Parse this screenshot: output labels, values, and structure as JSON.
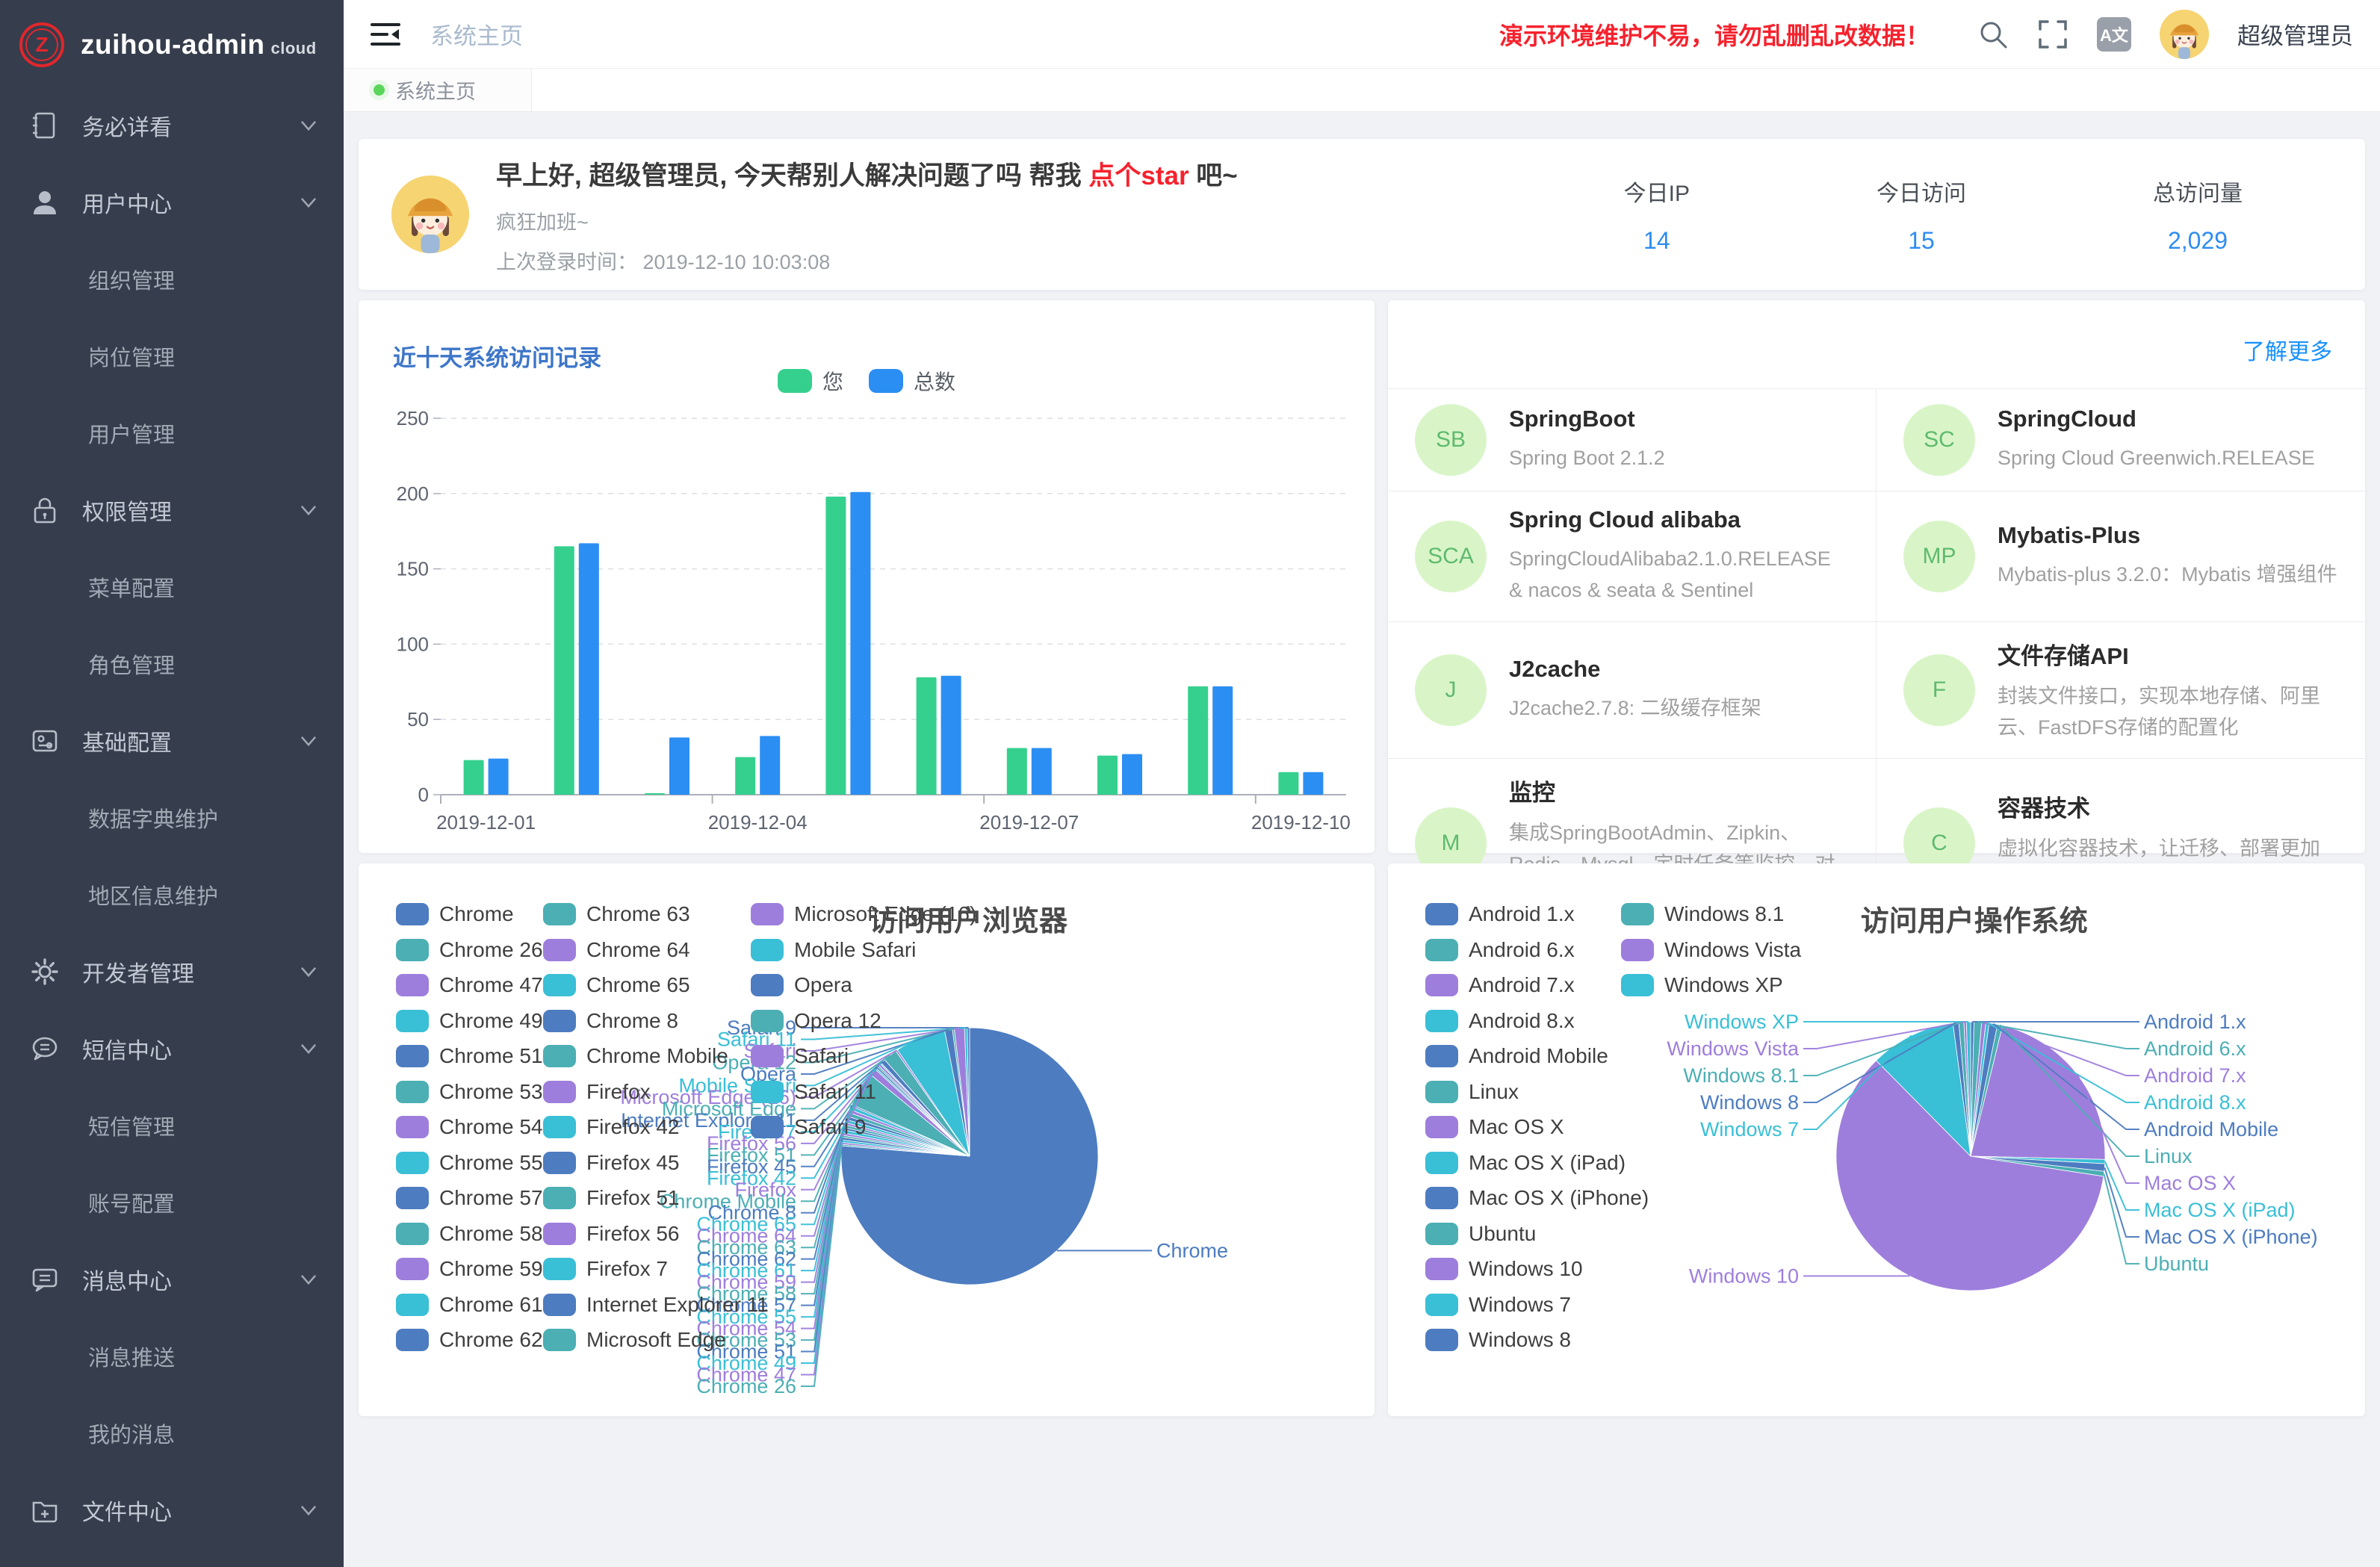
{
  "app": {
    "brand": "zuihou-admin",
    "brand_suffix": "cloud",
    "logo_letter": "Z"
  },
  "sidebar": {
    "items": [
      {
        "label": "务必详看",
        "icon": "notebook-icon",
        "children": []
      },
      {
        "label": "用户中心",
        "icon": "user-icon",
        "children": [
          "组织管理",
          "岗位管理",
          "用户管理"
        ]
      },
      {
        "label": "权限管理",
        "icon": "lock-icon",
        "children": [
          "菜单配置",
          "角色管理"
        ]
      },
      {
        "label": "基础配置",
        "icon": "sliders-icon",
        "children": [
          "数据字典维护",
          "地区信息维护"
        ]
      },
      {
        "label": "开发者管理",
        "icon": "gear-icon",
        "children": []
      },
      {
        "label": "短信中心",
        "icon": "chat-icon",
        "children": [
          "短信管理",
          "账号配置"
        ]
      },
      {
        "label": "消息中心",
        "icon": "message-icon",
        "children": [
          "消息推送",
          "我的消息"
        ]
      },
      {
        "label": "文件中心",
        "icon": "folder-plus-icon",
        "children": []
      }
    ]
  },
  "topbar": {
    "breadcrumb": "系统主页",
    "warning": "演示环境维护不易，请勿乱删乱改数据！",
    "translate_label": "A文",
    "user_name": "超级管理员"
  },
  "tabs": {
    "active": "系统主页"
  },
  "greeting": {
    "title_prefix": "早上好, 超级管理员, 今天帮别人解决问题了吗 帮我 ",
    "title_link": "点个star",
    "title_suffix": " 吧~",
    "motto": "疯狂加班~",
    "last_login_label": "上次登录时间：",
    "last_login_time": "2019-12-10 10:03:08"
  },
  "stats": [
    {
      "label": "今日IP",
      "value": "14"
    },
    {
      "label": "今日访问",
      "value": "15"
    },
    {
      "label": "总访问量",
      "value": "2,029"
    }
  ],
  "projects": {
    "more_link": "了解更多",
    "items": [
      {
        "initials": "SB",
        "title": "SpringBoot",
        "desc": "Spring Boot 2.1.2"
      },
      {
        "initials": "SC",
        "title": "SpringCloud",
        "desc": "Spring Cloud Greenwich.RELEASE"
      },
      {
        "initials": "SCA",
        "title": "Spring Cloud alibaba",
        "desc": "SpringCloudAlibaba2.1.0.RELEASE & nacos & seata & Sentinel"
      },
      {
        "initials": "MP",
        "title": "Mybatis-Plus",
        "desc": "Mybatis-plus 3.2.0：Mybatis 增强组件"
      },
      {
        "initials": "J",
        "title": "J2cache",
        "desc": "J2cache2.7.8: 二级缓存框架"
      },
      {
        "initials": "F",
        "title": "文件存储API",
        "desc": "封装文件接口，实现本地存储、阿里云、FastDFS存储的配置化"
      },
      {
        "initials": "M",
        "title": "监控",
        "desc": "集成SpringBootAdmin、Zipkin、Redis、Mysql、定时任务等监控，对系统进行全方位监控护航"
      },
      {
        "initials": "C",
        "title": "容器技术",
        "desc": "虚拟化容器技术，让迁移、部署更加方便快捷"
      }
    ]
  },
  "chart_data": [
    {
      "id": "visits_bar",
      "type": "bar",
      "title": "近十天系统访问记录",
      "categories": [
        "2019-12-01",
        "2019-12-02",
        "2019-12-03",
        "2019-12-04",
        "2019-12-05",
        "2019-12-06",
        "2019-12-07",
        "2019-12-08",
        "2019-12-09",
        "2019-12-10"
      ],
      "series": [
        {
          "name": "您",
          "color": "#35d08e",
          "values": [
            23,
            165,
            1,
            25,
            198,
            78,
            31,
            26,
            72,
            15
          ]
        },
        {
          "name": "总数",
          "color": "#2b8ef3",
          "values": [
            24,
            167,
            38,
            39,
            201,
            79,
            31,
            27,
            72,
            15
          ]
        }
      ],
      "ylim": [
        0,
        250
      ],
      "ytick_step": 50,
      "x_ticks_shown": [
        "2019-12-01",
        "2019-12-04",
        "2019-12-07",
        "2019-12-10"
      ],
      "grid": "dashed",
      "legend_position": "top",
      "values_estimated": true
    },
    {
      "id": "browsers_pie",
      "type": "pie",
      "title": "访问用户浏览器",
      "legend_position": "left",
      "values_estimated": true,
      "items": [
        {
          "name": "Chrome",
          "value": 1560
        },
        {
          "name": "Chrome 26",
          "value": 4
        },
        {
          "name": "Chrome 47",
          "value": 5
        },
        {
          "name": "Chrome 49",
          "value": 6
        },
        {
          "name": "Chrome 51",
          "value": 7
        },
        {
          "name": "Chrome 53",
          "value": 5
        },
        {
          "name": "Chrome 54",
          "value": 6
        },
        {
          "name": "Chrome 55",
          "value": 8
        },
        {
          "name": "Chrome 57",
          "value": 6
        },
        {
          "name": "Chrome 58",
          "value": 7
        },
        {
          "name": "Chrome 59",
          "value": 6
        },
        {
          "name": "Chrome 61",
          "value": 8
        },
        {
          "name": "Chrome 62",
          "value": 9
        },
        {
          "name": "Chrome 63",
          "value": 10
        },
        {
          "name": "Chrome 64",
          "value": 8
        },
        {
          "name": "Chrome 65",
          "value": 9
        },
        {
          "name": "Chrome 8",
          "value": 4
        },
        {
          "name": "Chrome Mobile",
          "value": 90
        },
        {
          "name": "Firefox",
          "value": 18
        },
        {
          "name": "Firefox 42",
          "value": 4
        },
        {
          "name": "Firefox 45",
          "value": 5
        },
        {
          "name": "Firefox 51",
          "value": 4
        },
        {
          "name": "Firefox 56",
          "value": 6
        },
        {
          "name": "Firefox 7",
          "value": 3
        },
        {
          "name": "Internet Explorer 11",
          "value": 12
        },
        {
          "name": "Microsoft Edge",
          "value": 36
        },
        {
          "name": "Microsoft Edge (16)",
          "value": 5
        },
        {
          "name": "Mobile Safari",
          "value": 130
        },
        {
          "name": "Opera",
          "value": 20
        },
        {
          "name": "Opera 12",
          "value": 5
        },
        {
          "name": "Safari",
          "value": 26
        },
        {
          "name": "Safari 11",
          "value": 7
        },
        {
          "name": "Safari 9",
          "value": 6
        }
      ]
    },
    {
      "id": "os_pie",
      "type": "pie",
      "title": "访问用户操作系统",
      "legend_position": "left",
      "values_estimated": true,
      "items": [
        {
          "name": "Android 1.x",
          "value": 8
        },
        {
          "name": "Android 6.x",
          "value": 18
        },
        {
          "name": "Android 7.x",
          "value": 10
        },
        {
          "name": "Android 8.x",
          "value": 8
        },
        {
          "name": "Android Mobile",
          "value": 20
        },
        {
          "name": "Linux",
          "value": 12
        },
        {
          "name": "Mac OS X",
          "value": 430
        },
        {
          "name": "Mac OS X (iPad)",
          "value": 10
        },
        {
          "name": "Mac OS X (iPhone)",
          "value": 18
        },
        {
          "name": "Ubuntu",
          "value": 12
        },
        {
          "name": "Windows 10",
          "value": 1200
        },
        {
          "name": "Windows 7",
          "value": 205
        },
        {
          "name": "Windows 8",
          "value": 14
        },
        {
          "name": "Windows 8.1",
          "value": 12
        },
        {
          "name": "Windows Vista",
          "value": 6
        },
        {
          "name": "Windows XP",
          "value": 10
        }
      ]
    }
  ],
  "colors": {
    "accent_blue": "#2d8cf0",
    "link_blue": "#1890ff",
    "danger_red": "#f5222d",
    "sidebar_bg": "#363d4c",
    "page_bg": "#f0f2f5",
    "chart_title_blue": "#3d76c9",
    "tab_dot_green": "#5bd65b",
    "project_icon_bg": "#d9f5c8",
    "project_icon_text": "#5fba6e",
    "pie_palette": [
      "#4d7cc0",
      "#4bafb4",
      "#9e7edc",
      "#39bfd6"
    ]
  }
}
